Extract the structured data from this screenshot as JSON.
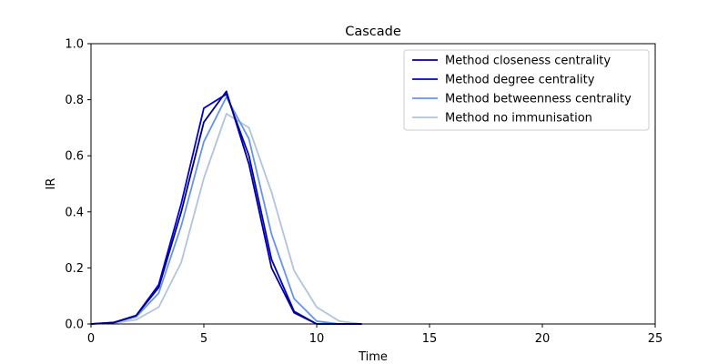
{
  "chart_data": {
    "type": "line",
    "title": "Cascade",
    "xlabel": "Time",
    "ylabel": "IR",
    "xlim": [
      0,
      25
    ],
    "ylim": [
      0,
      1.0
    ],
    "x_ticks": [
      0,
      5,
      10,
      15,
      20,
      25
    ],
    "x_tick_labels": [
      "0",
      "5",
      "10",
      "15",
      "20",
      "25"
    ],
    "y_ticks": [
      0,
      0.2,
      0.4,
      0.6,
      0.8,
      1.0
    ],
    "y_tick_labels": [
      "0.0",
      "0.2",
      "0.4",
      "0.6",
      "0.8",
      "1.0"
    ],
    "grid": false,
    "legend_position": "top-right",
    "x": [
      0,
      1,
      2,
      3,
      4,
      5,
      6,
      7,
      8,
      9,
      10,
      11,
      12
    ],
    "series": [
      {
        "name": "Method closeness centrality",
        "color": "#00008b",
        "values": [
          0.0,
          0.005,
          0.03,
          0.13,
          0.4,
          0.72,
          0.83,
          0.57,
          0.2,
          0.04,
          0.0,
          0.0,
          0.0
        ]
      },
      {
        "name": "Method degree centrality",
        "color": "#0000cd",
        "values": [
          0.0,
          0.005,
          0.03,
          0.14,
          0.43,
          0.77,
          0.82,
          0.6,
          0.23,
          0.045,
          0.0,
          0.0,
          0.0
        ]
      },
      {
        "name": "Method betweenness centrality",
        "color": "#6495ed",
        "values": [
          0.0,
          0.005,
          0.025,
          0.11,
          0.35,
          0.65,
          0.81,
          0.66,
          0.32,
          0.09,
          0.01,
          0.0,
          0.0
        ]
      },
      {
        "name": "Method no immunisation",
        "color": "#b0c4de",
        "values": [
          0.0,
          0.003,
          0.015,
          0.06,
          0.22,
          0.52,
          0.75,
          0.7,
          0.47,
          0.19,
          0.06,
          0.01,
          0.0
        ]
      }
    ]
  }
}
